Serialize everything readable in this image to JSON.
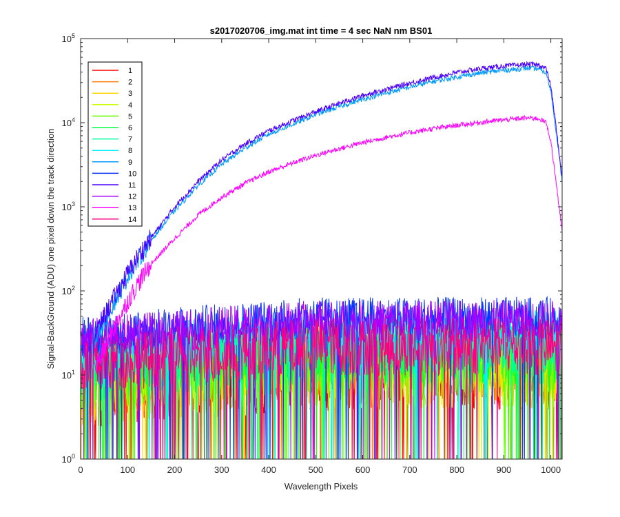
{
  "chart_data": {
    "type": "line",
    "title": "s2017020706_img.mat int time = 4 sec  NaN nm BS01",
    "xlabel": "Wavelength Pixels",
    "ylabel": "Signal-BackGround (ADU) one pixel down the track direction",
    "xlim": [
      0,
      1024
    ],
    "ylim": [
      1,
      100000
    ],
    "yscale": "log",
    "grid": false,
    "legend_position": "top-left",
    "x_ticks": [
      "0",
      "100",
      "200",
      "300",
      "400",
      "500",
      "600",
      "700",
      "800",
      "900",
      "1000"
    ],
    "y_ticks": [
      {
        "base": "10",
        "exp": "0"
      },
      {
        "base": "10",
        "exp": "1"
      },
      {
        "base": "10",
        "exp": "2"
      },
      {
        "base": "10",
        "exp": "3"
      },
      {
        "base": "10",
        "exp": "4"
      },
      {
        "base": "10",
        "exp": "5"
      }
    ],
    "x": [
      30,
      50,
      75,
      100,
      125,
      150,
      200,
      250,
      300,
      350,
      400,
      450,
      500,
      550,
      600,
      650,
      700,
      750,
      800,
      850,
      900,
      950,
      975,
      990,
      1000,
      1010,
      1024
    ],
    "series": [
      {
        "name": "1",
        "color": "#ff0000",
        "level": 22,
        "spread": 0.55
      },
      {
        "name": "2",
        "color": "#ff7a00",
        "level": 22,
        "spread": 0.5
      },
      {
        "name": "3",
        "color": "#ffd700",
        "level": 20,
        "spread": 0.5
      },
      {
        "name": "4",
        "color": "#c8ff00",
        "level": 24,
        "spread": 0.45
      },
      {
        "name": "5",
        "color": "#66ff00",
        "level": 26,
        "spread": 0.45
      },
      {
        "name": "6",
        "color": "#00ff40",
        "level": 28,
        "spread": 0.4
      },
      {
        "name": "7",
        "color": "#00ffa0",
        "level": 32,
        "spread": 0.35
      },
      {
        "name": "8",
        "color": "#00f0ff",
        "level": 40,
        "spread": 0.3
      },
      {
        "name": "9",
        "color": "#0099ff",
        "values": [
          25,
          45,
          80,
          150,
          250,
          400,
          900,
          1800,
          3200,
          5000,
          7300,
          9500,
          12500,
          15500,
          19000,
          22500,
          26500,
          31000,
          35000,
          39000,
          42000,
          44500,
          43500,
          39000,
          24000,
          9000,
          2000
        ]
      },
      {
        "name": "10",
        "color": "#0a33ff",
        "level": 60,
        "spread": 0.25
      },
      {
        "name": "11",
        "color": "#4b00ff",
        "values": [
          30,
          50,
          90,
          160,
          270,
          430,
          1000,
          2000,
          3600,
          5600,
          8000,
          10500,
          13500,
          17000,
          21000,
          25000,
          29500,
          34500,
          39500,
          44000,
          47000,
          49500,
          48500,
          44000,
          27000,
          10000,
          2200
        ]
      },
      {
        "name": "12",
        "color": "#a800ff",
        "level": 55,
        "spread": 0.25
      },
      {
        "name": "13",
        "color": "#ff00ff",
        "values": [
          12,
          20,
          40,
          75,
          130,
          210,
          420,
          800,
          1300,
          1900,
          2600,
          3300,
          4100,
          4900,
          5800,
          6700,
          7600,
          8500,
          9300,
          10100,
          10800,
          11400,
          11200,
          10000,
          6000,
          2200,
          500
        ]
      },
      {
        "name": "14",
        "color": "#ff0080",
        "level": 30,
        "spread": 0.35
      }
    ]
  }
}
